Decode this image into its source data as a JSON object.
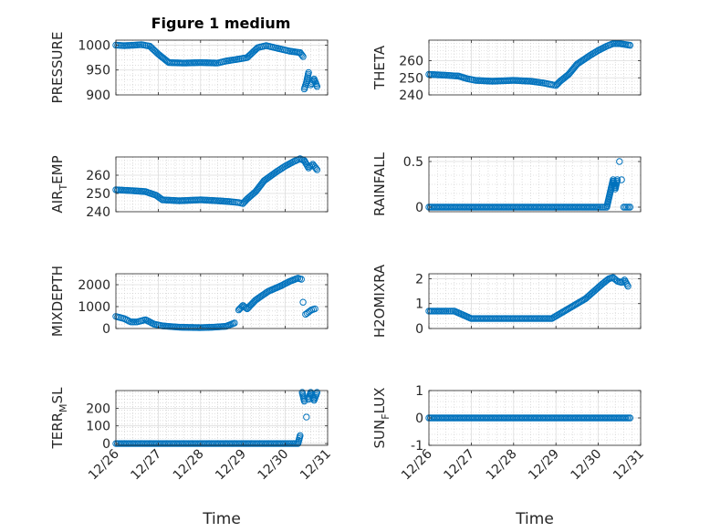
{
  "figure": {
    "title": "Figure 1 medium",
    "marker_color": "#0072BD",
    "xlabel": "Time",
    "x_tick_labels": [
      "12/26",
      "12/27",
      "12/28",
      "12/29",
      "12/30",
      "12/31"
    ]
  },
  "chart_data": [
    {
      "type": "scatter",
      "ylabel": "PRESSURE",
      "xlim": [
        0,
        5
      ],
      "ylim": [
        900,
        1010
      ],
      "yticks": [
        900,
        950,
        1000
      ],
      "ytick_labels": [
        "900",
        "950",
        "1000"
      ],
      "grid": true,
      "minor_grid": true,
      "series": [
        {
          "points": [
            [
              0,
              1000
            ],
            [
              0.2,
              999
            ],
            [
              0.45,
              1000
            ],
            [
              0.6,
              1001
            ],
            [
              0.8,
              998
            ],
            [
              1.0,
              982
            ],
            [
              1.25,
              965
            ],
            [
              1.6,
              964
            ],
            [
              2.0,
              965
            ],
            [
              2.4,
              964
            ],
            [
              2.6,
              968
            ],
            [
              2.9,
              972
            ],
            [
              3.1,
              975
            ],
            [
              3.35,
              995
            ],
            [
              3.55,
              999
            ],
            [
              3.75,
              995
            ],
            [
              3.9,
              992
            ],
            [
              4.1,
              988
            ],
            [
              4.35,
              985
            ],
            [
              4.42,
              977
            ],
            [
              4.45,
              912
            ],
            [
              4.5,
              925
            ],
            [
              4.55,
              945
            ],
            [
              4.6,
              920
            ],
            [
              4.68,
              932
            ],
            [
              4.75,
              917
            ]
          ]
        }
      ]
    },
    {
      "type": "scatter",
      "ylabel": "THETA",
      "xlim": [
        0,
        5
      ],
      "ylim": [
        240,
        272
      ],
      "yticks": [
        240,
        250,
        260
      ],
      "ytick_labels": [
        "240",
        "250",
        "260"
      ],
      "grid": true,
      "minor_grid": true,
      "series": [
        {
          "points": [
            [
              0,
              252
            ],
            [
              0.4,
              251.5
            ],
            [
              0.7,
              251
            ],
            [
              0.9,
              249.5
            ],
            [
              1.1,
              248.5
            ],
            [
              1.5,
              248
            ],
            [
              2.0,
              248.5
            ],
            [
              2.4,
              248
            ],
            [
              2.7,
              247
            ],
            [
              2.9,
              246
            ],
            [
              3.0,
              245.5
            ],
            [
              3.1,
              248
            ],
            [
              3.3,
              252
            ],
            [
              3.5,
              258
            ],
            [
              3.8,
              263
            ],
            [
              4.0,
              266
            ],
            [
              4.2,
              268.5
            ],
            [
              4.35,
              270
            ],
            [
              4.5,
              270
            ],
            [
              4.75,
              269
            ]
          ]
        }
      ]
    },
    {
      "type": "scatter",
      "ylabel": "AIR_TEMP",
      "xlim": [
        0,
        5
      ],
      "ylim": [
        240,
        270
      ],
      "yticks": [
        240,
        250,
        260
      ],
      "ytick_labels": [
        "240",
        "250",
        "260"
      ],
      "grid": true,
      "minor_grid": true,
      "series": [
        {
          "points": [
            [
              0,
              252
            ],
            [
              0.4,
              251.5
            ],
            [
              0.7,
              251
            ],
            [
              0.95,
              249
            ],
            [
              1.1,
              246.5
            ],
            [
              1.5,
              246
            ],
            [
              2.0,
              246.5
            ],
            [
              2.4,
              246
            ],
            [
              2.7,
              245.5
            ],
            [
              2.9,
              245
            ],
            [
              3.0,
              244.5
            ],
            [
              3.1,
              247
            ],
            [
              3.3,
              251
            ],
            [
              3.5,
              257
            ],
            [
              3.8,
              262
            ],
            [
              4.0,
              265
            ],
            [
              4.2,
              267.5
            ],
            [
              4.35,
              269
            ],
            [
              4.45,
              268
            ],
            [
              4.55,
              264
            ],
            [
              4.65,
              266
            ],
            [
              4.75,
              263
            ]
          ]
        }
      ]
    },
    {
      "type": "scatter",
      "ylabel": "RAINFALL",
      "xlim": [
        0,
        5
      ],
      "ylim": [
        -0.05,
        0.55
      ],
      "yticks": [
        0,
        0.5
      ],
      "ytick_labels": [
        "0",
        "0.5"
      ],
      "grid": true,
      "minor_grid": true,
      "series": [
        {
          "points": [
            [
              0,
              0
            ],
            [
              0.5,
              0
            ],
            [
              1.0,
              0
            ],
            [
              1.5,
              0
            ],
            [
              2.0,
              0
            ],
            [
              2.5,
              0
            ],
            [
              3.0,
              0
            ],
            [
              3.5,
              0
            ],
            [
              4.0,
              0
            ],
            [
              4.2,
              0
            ],
            [
              4.25,
              0.1
            ],
            [
              4.3,
              0.2
            ],
            [
              4.35,
              0.3
            ],
            [
              4.4,
              0.2
            ],
            [
              4.45,
              0.3
            ],
            [
              4.5,
              0.5
            ],
            [
              4.55,
              0.3
            ],
            [
              4.6,
              0
            ],
            [
              4.75,
              0
            ]
          ]
        }
      ]
    },
    {
      "type": "scatter",
      "ylabel": "MIXDEPTH",
      "xlim": [
        0,
        5
      ],
      "ylim": [
        0,
        2500
      ],
      "yticks": [
        0,
        1000,
        2000
      ],
      "ytick_labels": [
        "0",
        "1000",
        "2000"
      ],
      "grid": true,
      "minor_grid": true,
      "series": [
        {
          "points": [
            [
              0,
              550
            ],
            [
              0.2,
              450
            ],
            [
              0.35,
              300
            ],
            [
              0.5,
              300
            ],
            [
              0.7,
              400
            ],
            [
              0.9,
              200
            ],
            [
              1.1,
              120
            ],
            [
              1.5,
              60
            ],
            [
              2.0,
              40
            ],
            [
              2.3,
              60
            ],
            [
              2.6,
              100
            ],
            [
              2.8,
              250
            ],
            [
              2.9,
              850
            ],
            [
              3.0,
              1050
            ],
            [
              3.1,
              900
            ],
            [
              3.3,
              1300
            ],
            [
              3.6,
              1700
            ],
            [
              3.9,
              1950
            ],
            [
              4.1,
              2150
            ],
            [
              4.3,
              2300
            ],
            [
              4.38,
              2250
            ],
            [
              4.42,
              1200
            ],
            [
              4.48,
              650
            ],
            [
              4.55,
              750
            ],
            [
              4.62,
              850
            ],
            [
              4.7,
              900
            ]
          ]
        }
      ]
    },
    {
      "type": "scatter",
      "ylabel": "H2OMIXRA",
      "xlim": [
        0,
        5
      ],
      "ylim": [
        0,
        2.2
      ],
      "yticks": [
        0,
        1,
        2
      ],
      "ytick_labels": [
        "0",
        "1",
        "2"
      ],
      "grid": true,
      "minor_grid": true,
      "series": [
        {
          "points": [
            [
              0,
              0.7
            ],
            [
              0.4,
              0.7
            ],
            [
              0.6,
              0.7
            ],
            [
              0.8,
              0.55
            ],
            [
              1.0,
              0.4
            ],
            [
              1.5,
              0.4
            ],
            [
              2.0,
              0.4
            ],
            [
              2.5,
              0.4
            ],
            [
              2.9,
              0.4
            ],
            [
              3.1,
              0.6
            ],
            [
              3.4,
              0.9
            ],
            [
              3.7,
              1.2
            ],
            [
              3.9,
              1.5
            ],
            [
              4.1,
              1.8
            ],
            [
              4.25,
              2.0
            ],
            [
              4.35,
              2.05
            ],
            [
              4.45,
              1.9
            ],
            [
              4.55,
              1.85
            ],
            [
              4.62,
              1.95
            ],
            [
              4.7,
              1.7
            ]
          ]
        }
      ]
    },
    {
      "type": "scatter",
      "ylabel": "TERR_MSL",
      "xlim": [
        0,
        5
      ],
      "ylim": [
        -10,
        300
      ],
      "yticks": [
        0,
        100,
        200
      ],
      "ytick_labels": [
        "0",
        "100",
        "200"
      ],
      "grid": true,
      "minor_grid": true,
      "series": [
        {
          "points": [
            [
              0,
              0
            ],
            [
              0.5,
              0
            ],
            [
              1.0,
              0
            ],
            [
              1.5,
              0
            ],
            [
              2.0,
              0
            ],
            [
              2.5,
              0
            ],
            [
              3.0,
              0
            ],
            [
              3.5,
              0
            ],
            [
              4.0,
              0
            ],
            [
              4.3,
              0
            ],
            [
              4.35,
              45
            ],
            [
              4.4,
              290
            ],
            [
              4.45,
              240
            ],
            [
              4.5,
              150
            ],
            [
              4.55,
              250
            ],
            [
              4.6,
              290
            ],
            [
              4.68,
              245
            ],
            [
              4.75,
              290
            ]
          ]
        }
      ]
    },
    {
      "type": "scatter",
      "ylabel": "SUN_FLUX",
      "xlim": [
        0,
        5
      ],
      "ylim": [
        -1,
        1
      ],
      "yticks": [
        -1,
        0,
        1
      ],
      "ytick_labels": [
        "-1",
        "0",
        "1"
      ],
      "grid": true,
      "minor_grid": true,
      "series": [
        {
          "points": [
            [
              0,
              0
            ],
            [
              0.5,
              0
            ],
            [
              1.0,
              0
            ],
            [
              1.5,
              0
            ],
            [
              2.0,
              0
            ],
            [
              2.5,
              0
            ],
            [
              3.0,
              0
            ],
            [
              3.5,
              0
            ],
            [
              4.0,
              0
            ],
            [
              4.5,
              0
            ],
            [
              4.75,
              0
            ]
          ]
        }
      ]
    }
  ]
}
